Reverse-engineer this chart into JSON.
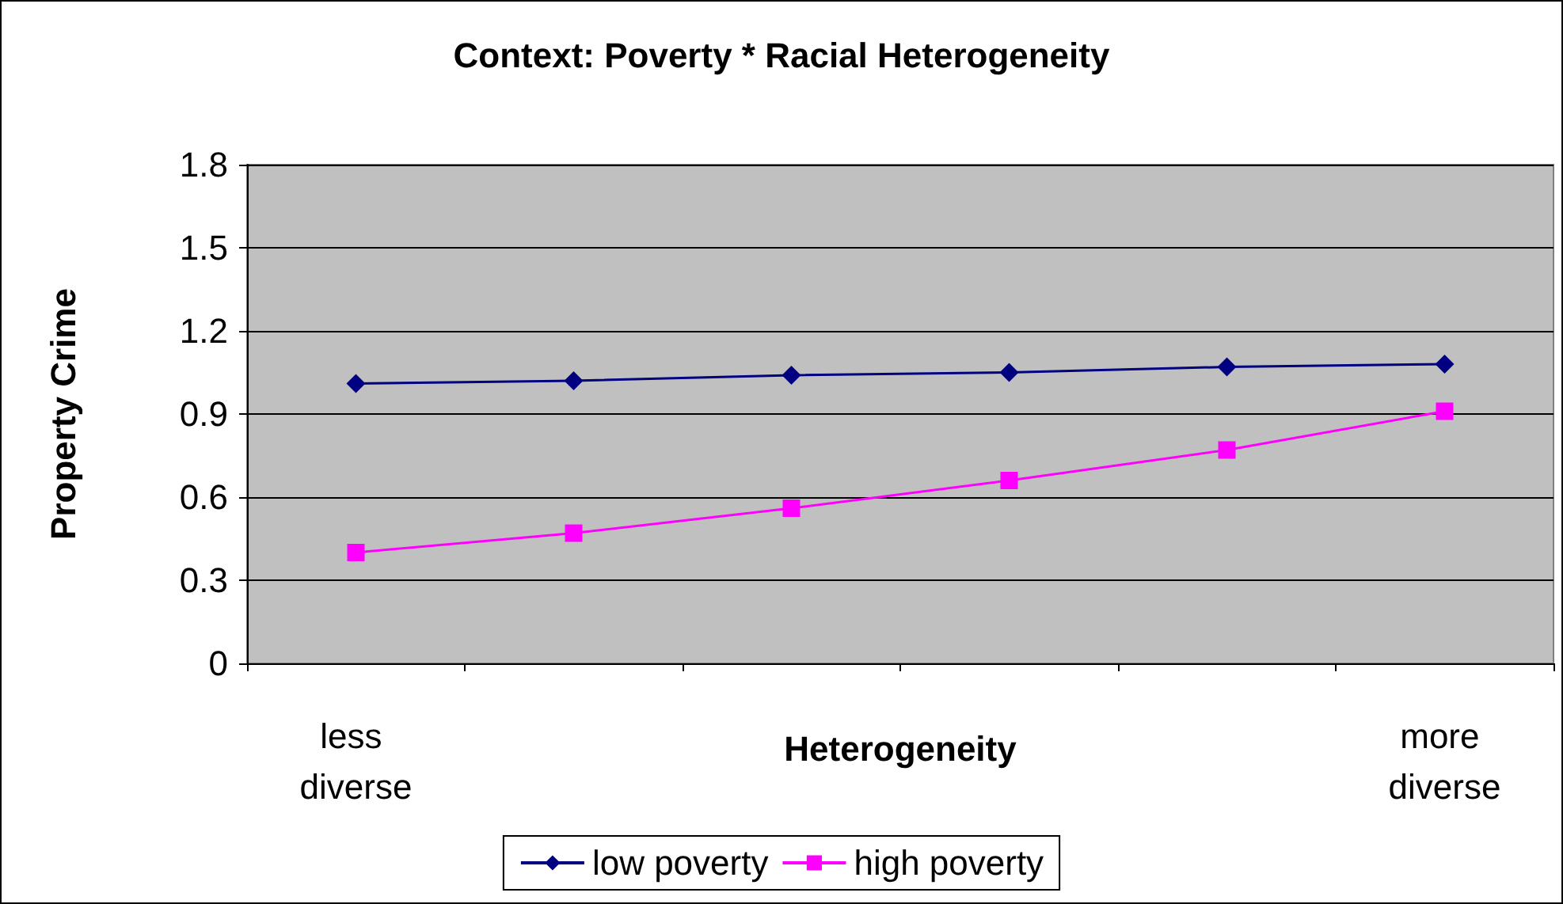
{
  "chart_data": {
    "type": "line",
    "title": "Context: Poverty * Racial Heterogeneity",
    "xlabel": "Heterogeneity",
    "ylabel": "Property Crime",
    "categories": [
      "less diverse",
      null,
      null,
      null,
      null,
      "more diverse"
    ],
    "series": [
      {
        "name": "low poverty",
        "color": "#000080",
        "marker": "diamond",
        "values": [
          1.01,
          1.02,
          1.04,
          1.05,
          1.07,
          1.08
        ]
      },
      {
        "name": "high poverty",
        "color": "#ff00ff",
        "marker": "square",
        "values": [
          0.4,
          0.47,
          0.56,
          0.66,
          0.77,
          0.91
        ]
      }
    ],
    "ylim": [
      0,
      1.8
    ],
    "yticks": [
      0,
      0.3,
      0.6,
      0.9,
      1.2,
      1.5,
      1.8
    ],
    "grid": "y",
    "legend": "bottom"
  }
}
